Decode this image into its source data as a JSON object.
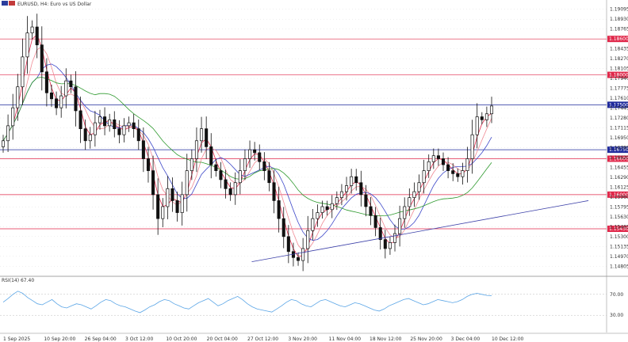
{
  "header": {
    "symbol_label": "EURUSD, H4:  Euro vs US Dollar"
  },
  "rsi_header": {
    "label": "RSI(14) 67.40"
  },
  "colors": {
    "background": "#ffffff",
    "candle": "#111111",
    "grid": "#c8c8c8",
    "resistance_line": "#e0284a",
    "current_price_line": "#1f2a9c",
    "trendline": "#3b3fa8",
    "ma_fast": "#e0284a",
    "ma_mid": "#3d48c9",
    "ma_slow": "#2f9a2f",
    "ma_extra": "#f08a94",
    "rsi_line": "#5aa5e6",
    "tag_red": "#e0284a",
    "tag_blue": "#1f2a9c"
  },
  "chart_data": {
    "type": "candlestick",
    "symbol": "EURUSD",
    "timeframe": "H4",
    "ylim": [
      1.1465,
      1.1925
    ],
    "y_ticks": [
      "1.19095",
      "1.18930",
      "1.18765",
      "1.18435",
      "1.18270",
      "1.18105",
      "1.17940",
      "1.17775",
      "1.17610",
      "1.17445",
      "1.17280",
      "1.17115",
      "1.16950",
      "1.16785",
      "1.16620",
      "1.16455",
      "1.16290",
      "1.16125",
      "1.15960",
      "1.15795",
      "1.15630",
      "1.15465",
      "1.15300",
      "1.15135",
      "1.14970",
      "1.14805"
    ],
    "x_ticks": [
      "1 Sep 2025",
      "10 Sep 20:00",
      "26 Sep 04:00",
      "3 Oct 12:00",
      "10 Oct 20:00",
      "20 Oct 04:00",
      "27 Oct 12:00",
      "3 Nov 20:00",
      "11 Nov 04:00",
      "18 Nov 12:00",
      "25 Nov 20:00",
      "3 Dec 04:00",
      "10 Dec 12:00"
    ],
    "horizontal_levels": [
      {
        "price": 1.186,
        "label": "1.18600",
        "color": "#e0284a"
      },
      {
        "price": 1.18,
        "label": "1.18000",
        "color": "#e0284a"
      },
      {
        "price": 1.175,
        "label": "1.17500",
        "color": "#1f2a9c"
      },
      {
        "price": 1.1675,
        "label": "1.16750",
        "color": "#1f2a9c"
      },
      {
        "price": 1.166,
        "label": "1.16600",
        "color": "#e0284a"
      },
      {
        "price": 1.16,
        "label": "1.16000",
        "color": "#e0284a"
      },
      {
        "price": 1.1543,
        "label": "1.15430",
        "color": "#e0284a"
      }
    ],
    "trendline": {
      "from": [
        0.415,
        1.1488
      ],
      "to": [
        0.97,
        1.159
      ]
    },
    "close_series": [
      1.169,
      1.1715,
      1.1745,
      1.178,
      1.183,
      1.187,
      1.188,
      1.185,
      1.1805,
      1.177,
      1.176,
      1.1745,
      1.1765,
      1.179,
      1.178,
      1.174,
      1.171,
      1.169,
      1.17,
      1.172,
      1.173,
      1.1715,
      1.1725,
      1.171,
      1.17,
      1.1715,
      1.172,
      1.171,
      1.169,
      1.166,
      1.164,
      1.16,
      1.156,
      1.158,
      1.161,
      1.159,
      1.157,
      1.16,
      1.164,
      1.166,
      1.169,
      1.171,
      1.168,
      1.165,
      1.164,
      1.1625,
      1.161,
      1.16,
      1.162,
      1.164,
      1.166,
      1.1675,
      1.167,
      1.1655,
      1.164,
      1.162,
      1.159,
      1.156,
      1.153,
      1.1505,
      1.1495,
      1.149,
      1.151,
      1.154,
      1.156,
      1.157,
      1.158,
      1.1575,
      1.1585,
      1.1595,
      1.1605,
      1.1615,
      1.163,
      1.162,
      1.16,
      1.158,
      1.1565,
      1.1545,
      1.1525,
      1.151,
      1.152,
      1.1535,
      1.156,
      1.158,
      1.1595,
      1.1605,
      1.162,
      1.164,
      1.1655,
      1.1665,
      1.166,
      1.165,
      1.164,
      1.1635,
      1.163,
      1.164,
      1.166,
      1.17,
      1.173,
      1.1725,
      1.1735,
      1.1748
    ],
    "rsi": {
      "period": 14,
      "current": 67.4,
      "levels": [
        70.0,
        30.0
      ],
      "values": [
        55,
        62,
        70,
        76,
        72,
        64,
        58,
        52,
        50,
        55,
        60,
        52,
        46,
        44,
        48,
        52,
        50,
        46,
        42,
        48,
        55,
        60,
        58,
        52,
        48,
        46,
        42,
        38,
        35,
        40,
        46,
        50,
        56,
        60,
        58,
        52,
        48,
        44,
        42,
        48,
        54,
        58,
        62,
        55,
        48,
        52,
        58,
        62,
        66,
        60,
        52,
        46,
        42,
        40,
        38,
        36,
        42,
        48,
        55,
        60,
        58,
        52,
        48,
        46,
        52,
        58,
        60,
        56,
        52,
        48,
        46,
        50,
        54,
        52,
        48,
        44,
        40,
        38,
        42,
        48,
        52,
        56,
        60,
        62,
        58,
        54,
        50,
        52,
        56,
        60,
        58,
        56,
        54,
        56,
        60,
        66,
        70,
        72,
        70,
        68,
        67.4
      ]
    }
  }
}
